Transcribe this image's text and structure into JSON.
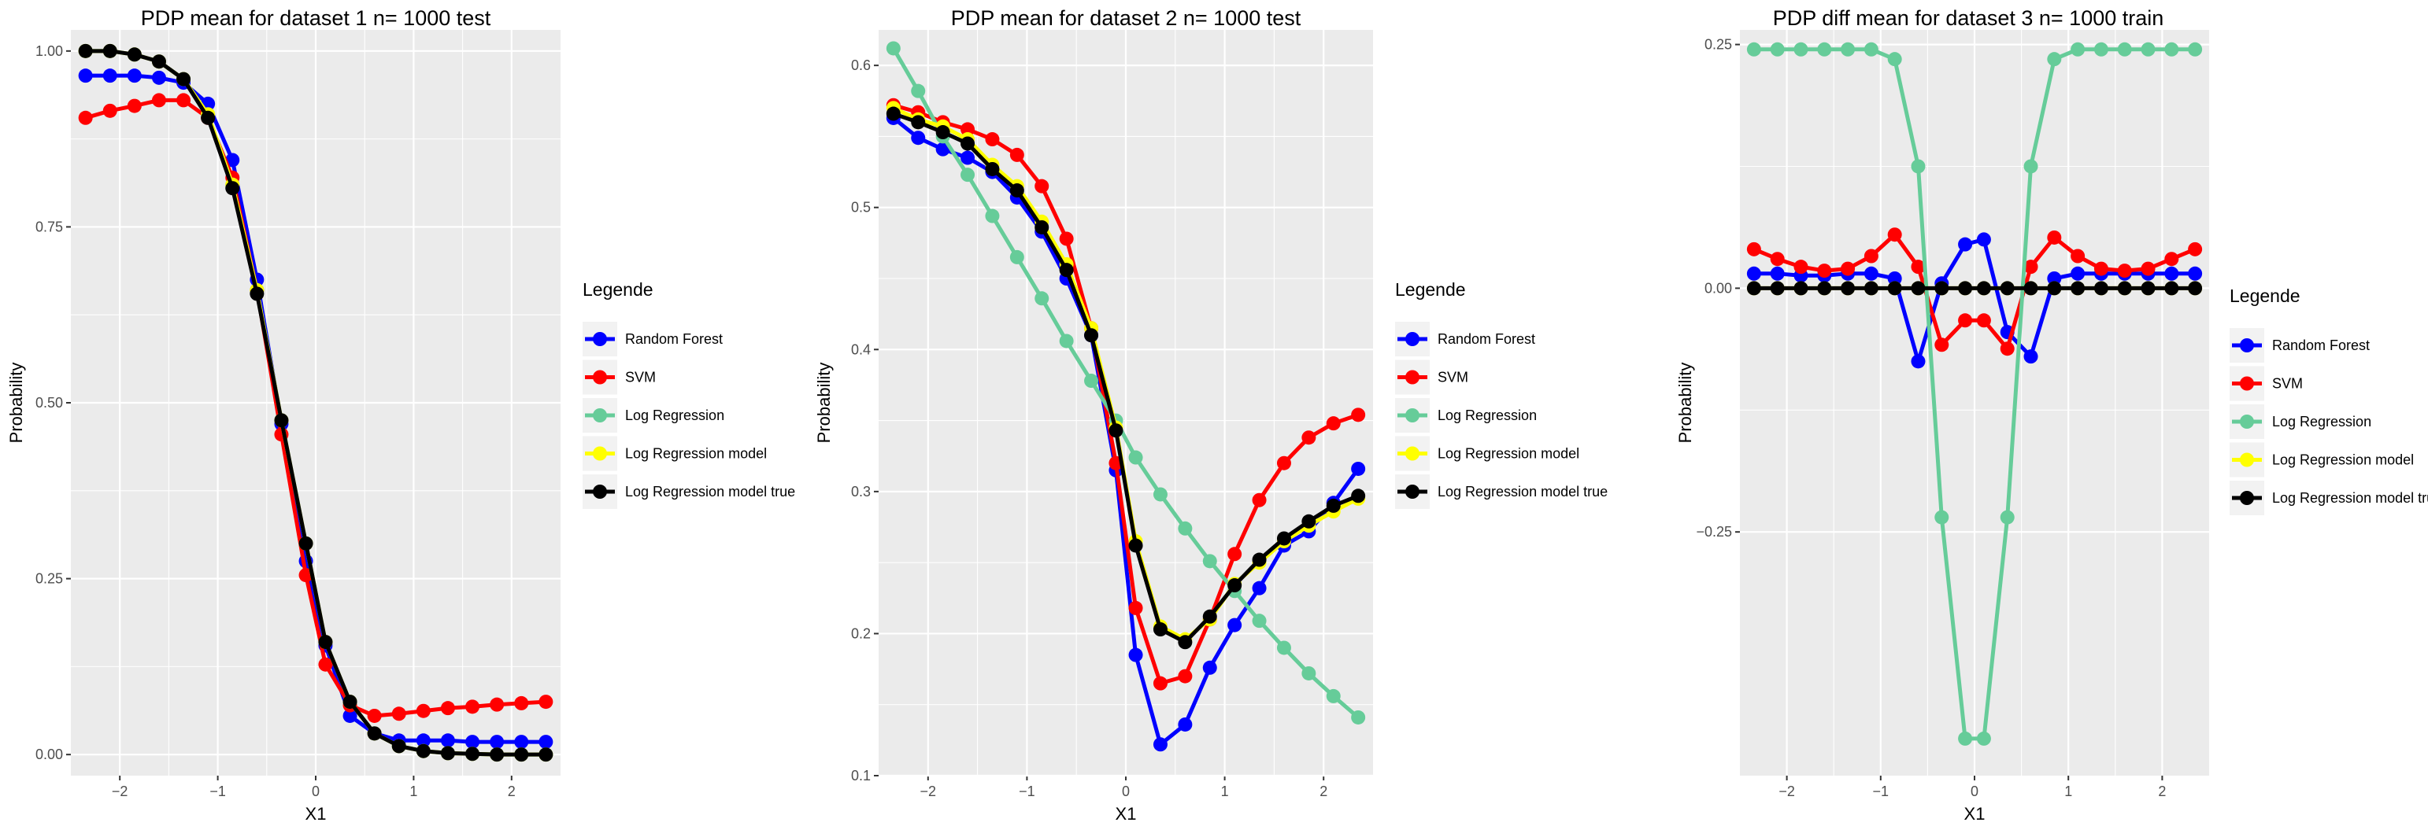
{
  "chart_data": [
    {
      "type": "line",
      "title": "PDP mean for dataset 1 n= 1000 test",
      "xlabel": "X1",
      "ylabel": "Probability",
      "xlim": [
        -2.5,
        2.5
      ],
      "ylim": [
        -0.03,
        1.03
      ],
      "xticks": [
        -2,
        -1,
        0,
        1,
        2
      ],
      "xtick_labels": [
        "−2",
        "−1",
        "0",
        "1",
        "2"
      ],
      "yticks": [
        0,
        0.25,
        0.5,
        0.75,
        1
      ],
      "ytick_labels": [
        "0.00",
        "0.25",
        "0.50",
        "0.75",
        "1.00"
      ],
      "grid": true,
      "legend_title": "Legende",
      "legend_position": "right",
      "x": [
        -2.35,
        -2.1,
        -1.85,
        -1.6,
        -1.35,
        -1.1,
        -0.85,
        -0.6,
        -0.35,
        -0.1,
        0.1,
        0.35,
        0.6,
        0.85,
        1.1,
        1.35,
        1.6,
        1.85,
        2.1,
        2.35
      ],
      "series": [
        {
          "name": "Random Forest",
          "color": "#0000ff",
          "values": [
            0.965,
            0.965,
            0.965,
            0.962,
            0.955,
            0.925,
            0.845,
            0.675,
            0.47,
            0.275,
            0.155,
            0.055,
            0.03,
            0.02,
            0.02,
            0.02,
            0.018,
            0.018,
            0.018,
            0.018
          ]
        },
        {
          "name": "SVM",
          "color": "#ff0000",
          "values": [
            0.905,
            0.915,
            0.922,
            0.93,
            0.93,
            0.905,
            0.82,
            0.66,
            0.455,
            0.255,
            0.128,
            0.07,
            0.055,
            0.058,
            0.062,
            0.066,
            0.068,
            0.071,
            0.073,
            0.075
          ]
        },
        {
          "name": "Log Regression",
          "color": "#66cc99",
          "values": [
            1.0,
            1.0,
            0.995,
            0.985,
            0.96,
            0.91,
            0.81,
            0.66,
            0.475,
            0.3,
            0.16,
            0.075,
            0.03,
            0.012,
            0.005,
            0.002,
            0.001,
            0.0,
            0.0,
            0.0
          ]
        },
        {
          "name": "Log Regression model",
          "color": "#ffff00",
          "values": [
            1.0,
            1.0,
            0.995,
            0.985,
            0.96,
            0.91,
            0.81,
            0.66,
            0.475,
            0.3,
            0.16,
            0.075,
            0.03,
            0.012,
            0.005,
            0.002,
            0.001,
            0.0,
            0.0,
            0.0
          ]
        },
        {
          "name": "Log Regression model true",
          "color": "#000000",
          "values": [
            1.0,
            1.0,
            0.995,
            0.985,
            0.96,
            0.905,
            0.805,
            0.655,
            0.475,
            0.3,
            0.16,
            0.075,
            0.03,
            0.012,
            0.005,
            0.002,
            0.001,
            0.0,
            0.0,
            0.0
          ]
        }
      ]
    },
    {
      "type": "line",
      "title": "PDP mean for dataset 2 n= 1000 test",
      "xlabel": "X1",
      "ylabel": "Probability",
      "xlim": [
        -2.5,
        2.5
      ],
      "ylim": [
        0.1,
        0.625
      ],
      "xticks": [
        -2,
        -1,
        0,
        1,
        2
      ],
      "xtick_labels": [
        "−2",
        "−1",
        "0",
        "1",
        "2"
      ],
      "yticks": [
        0.1,
        0.2,
        0.3,
        0.4,
        0.5,
        0.6
      ],
      "ytick_labels": [
        "0.1",
        "0.2",
        "0.3",
        "0.4",
        "0.5",
        "0.6"
      ],
      "grid": true,
      "legend_title": "Legende",
      "legend_position": "right",
      "x": [
        -2.35,
        -2.1,
        -1.85,
        -1.6,
        -1.35,
        -1.1,
        -0.85,
        -0.6,
        -0.35,
        -0.1,
        0.1,
        0.35,
        0.6,
        0.85,
        1.1,
        1.35,
        1.6,
        1.85,
        2.1,
        2.35
      ],
      "series": [
        {
          "name": "Random Forest",
          "color": "#0000ff",
          "values": [
            0.563,
            0.549,
            0.541,
            0.535,
            0.525,
            0.507,
            0.483,
            0.45,
            0.41,
            0.315,
            0.185,
            0.122,
            0.136,
            0.176,
            0.206,
            0.232,
            0.262,
            0.272,
            0.292,
            0.316
          ]
        },
        {
          "name": "SVM",
          "color": "#ff0000",
          "values": [
            0.572,
            0.567,
            0.56,
            0.555,
            0.548,
            0.537,
            0.515,
            0.478,
            0.415,
            0.32,
            0.218,
            0.165,
            0.17,
            0.21,
            0.256,
            0.294,
            0.32,
            0.338,
            0.348,
            0.354
          ]
        },
        {
          "name": "Log Regression",
          "color": "#66cc99",
          "values": [
            0.612,
            0.582,
            0.55,
            0.523,
            0.494,
            0.465,
            0.436,
            0.406,
            0.378,
            0.35,
            0.324,
            0.298,
            0.274,
            0.251,
            0.23,
            0.209,
            0.19,
            0.172,
            0.156,
            0.141
          ]
        },
        {
          "name": "Log Regression model",
          "color": "#ffff00",
          "values": [
            0.57,
            0.562,
            0.557,
            0.548,
            0.53,
            0.515,
            0.49,
            0.46,
            0.415,
            0.345,
            0.265,
            0.205,
            0.196,
            0.21,
            0.235,
            0.25,
            0.265,
            0.276,
            0.286,
            0.295
          ]
        },
        {
          "name": "Log Regression model true",
          "color": "#000000",
          "values": [
            0.566,
            0.56,
            0.553,
            0.545,
            0.527,
            0.512,
            0.486,
            0.456,
            0.41,
            0.343,
            0.262,
            0.203,
            0.194,
            0.212,
            0.234,
            0.252,
            0.267,
            0.279,
            0.29,
            0.297
          ]
        }
      ]
    },
    {
      "type": "line",
      "title": "PDP diff mean for dataset 3 n= 1000 train",
      "xlabel": "X1",
      "ylabel": "Probability",
      "xlim": [
        -2.5,
        2.5
      ],
      "ylim": [
        -0.5,
        0.265
      ],
      "xticks": [
        -2,
        -1,
        0,
        1,
        2
      ],
      "xtick_labels": [
        "−2",
        "−1",
        "0",
        "1",
        "2"
      ],
      "yticks": [
        -0.25,
        0,
        0.25
      ],
      "ytick_labels": [
        "−0.25",
        "0.00",
        "0.25"
      ],
      "grid": true,
      "legend_title": "Legende",
      "legend_position": "right",
      "x": [
        -2.35,
        -2.1,
        -1.85,
        -1.6,
        -1.35,
        -1.1,
        -0.85,
        -0.6,
        -0.35,
        -0.1,
        0.1,
        0.35,
        0.6,
        0.85,
        1.1,
        1.35,
        1.6,
        1.85,
        2.1,
        2.35
      ],
      "series": [
        {
          "name": "Random Forest",
          "color": "#0000ff",
          "values": [
            0.015,
            0.015,
            0.013,
            0.013,
            0.015,
            0.015,
            0.01,
            -0.075,
            0.005,
            0.045,
            0.05,
            -0.045,
            -0.07,
            0.01,
            0.015,
            0.015,
            0.015,
            0.015,
            0.015,
            0.015
          ]
        },
        {
          "name": "SVM",
          "color": "#ff0000",
          "values": [
            0.04,
            0.03,
            0.022,
            0.018,
            0.02,
            0.033,
            0.055,
            0.022,
            -0.058,
            -0.033,
            -0.033,
            -0.062,
            0.022,
            0.052,
            0.033,
            0.02,
            0.018,
            0.02,
            0.03,
            0.04
          ]
        },
        {
          "name": "Log Regression",
          "color": "#66cc99",
          "values": [
            0.245,
            0.245,
            0.245,
            0.245,
            0.245,
            0.245,
            0.235,
            0.125,
            -0.235,
            -0.462,
            -0.462,
            -0.235,
            0.125,
            0.235,
            0.245,
            0.245,
            0.245,
            0.245,
            0.245,
            0.245
          ]
        },
        {
          "name": "Log Regression model",
          "color": "#ffff00",
          "values": [
            0,
            0,
            0,
            0,
            0,
            0,
            0,
            0,
            0,
            0,
            0,
            0,
            0,
            0,
            0,
            0,
            0,
            0,
            0,
            0
          ]
        },
        {
          "name": "Log Regression model true",
          "color": "#000000",
          "values": [
            0,
            0,
            0,
            0,
            0,
            0,
            0,
            0,
            0,
            0,
            0,
            0,
            0,
            0,
            0,
            0,
            0,
            0,
            0,
            0
          ]
        }
      ]
    }
  ]
}
